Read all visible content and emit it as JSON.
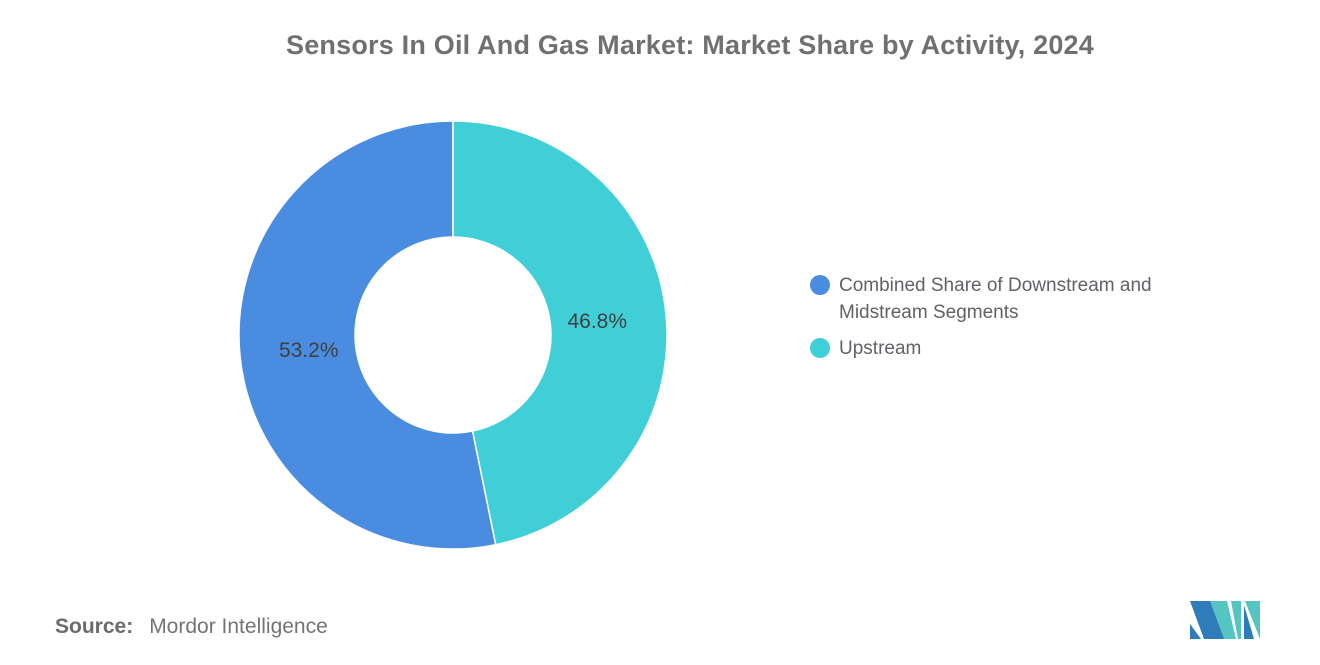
{
  "title": "Sensors In Oil And Gas Market: Market Share by Activity, 2024",
  "chart_data": {
    "type": "pie",
    "subtype": "donut",
    "title": "Sensors In Oil And Gas Market: Market Share by Activity, 2024",
    "categories": [
      "Combined Share of Downstream and Midstream Segments",
      "Upstream"
    ],
    "values": [
      53.2,
      46.8
    ],
    "labels": [
      "53.2%",
      "46.8%"
    ],
    "colors": [
      "#4A8CE0",
      "#40CFD6"
    ],
    "label_color": "#3f4040",
    "inner_radius_ratio": 0.46,
    "start_angle_deg": 0,
    "direction": "counterclockwise",
    "legend_position": "right",
    "grid": false
  },
  "legend": {
    "items": [
      {
        "label": "Combined Share of Downstream and Midstream Segments",
        "color": "#4A8CE0"
      },
      {
        "label": "Upstream",
        "color": "#40CFD6"
      }
    ]
  },
  "source": {
    "label": "Source:",
    "text": "Mordor Intelligence"
  },
  "logo": {
    "name": "mordor-intelligence-logo",
    "colors": {
      "blue": "#2E7CB9",
      "teal": "#54C5C1"
    }
  }
}
